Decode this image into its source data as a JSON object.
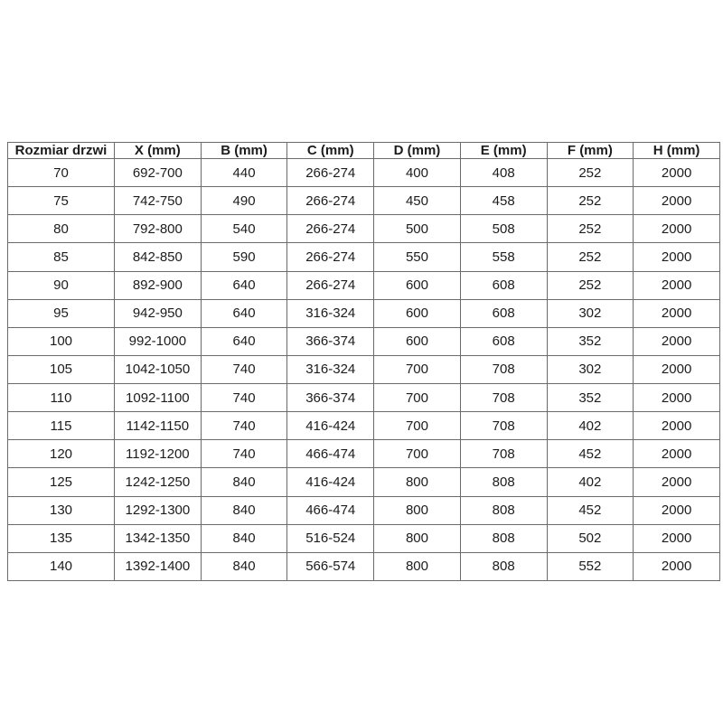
{
  "table": {
    "headers": [
      "Rozmiar drzwi",
      "X (mm)",
      "B (mm)",
      "C (mm)",
      "D (mm)",
      "E (mm)",
      "F (mm)",
      "H (mm)"
    ],
    "rows": [
      [
        "70",
        "692-700",
        "440",
        "266-274",
        "400",
        "408",
        "252",
        "2000"
      ],
      [
        "75",
        "742-750",
        "490",
        "266-274",
        "450",
        "458",
        "252",
        "2000"
      ],
      [
        "80",
        "792-800",
        "540",
        "266-274",
        "500",
        "508",
        "252",
        "2000"
      ],
      [
        "85",
        "842-850",
        "590",
        "266-274",
        "550",
        "558",
        "252",
        "2000"
      ],
      [
        "90",
        "892-900",
        "640",
        "266-274",
        "600",
        "608",
        "252",
        "2000"
      ],
      [
        "95",
        "942-950",
        "640",
        "316-324",
        "600",
        "608",
        "302",
        "2000"
      ],
      [
        "100",
        "992-1000",
        "640",
        "366-374",
        "600",
        "608",
        "352",
        "2000"
      ],
      [
        "105",
        "1042-1050",
        "740",
        "316-324",
        "700",
        "708",
        "302",
        "2000"
      ],
      [
        "110",
        "1092-1100",
        "740",
        "366-374",
        "700",
        "708",
        "352",
        "2000"
      ],
      [
        "115",
        "1142-1150",
        "740",
        "416-424",
        "700",
        "708",
        "402",
        "2000"
      ],
      [
        "120",
        "1192-1200",
        "740",
        "466-474",
        "700",
        "708",
        "452",
        "2000"
      ],
      [
        "125",
        "1242-1250",
        "840",
        "416-424",
        "800",
        "808",
        "402",
        "2000"
      ],
      [
        "130",
        "1292-1300",
        "840",
        "466-474",
        "800",
        "808",
        "452",
        "2000"
      ],
      [
        "135",
        "1342-1350",
        "840",
        "516-524",
        "800",
        "808",
        "502",
        "2000"
      ],
      [
        "140",
        "1392-1400",
        "840",
        "566-574",
        "800",
        "808",
        "552",
        "2000"
      ]
    ],
    "colors": {
      "border": "#6b6b6b",
      "text": "#1c1c1c",
      "background": "#ffffff"
    }
  }
}
